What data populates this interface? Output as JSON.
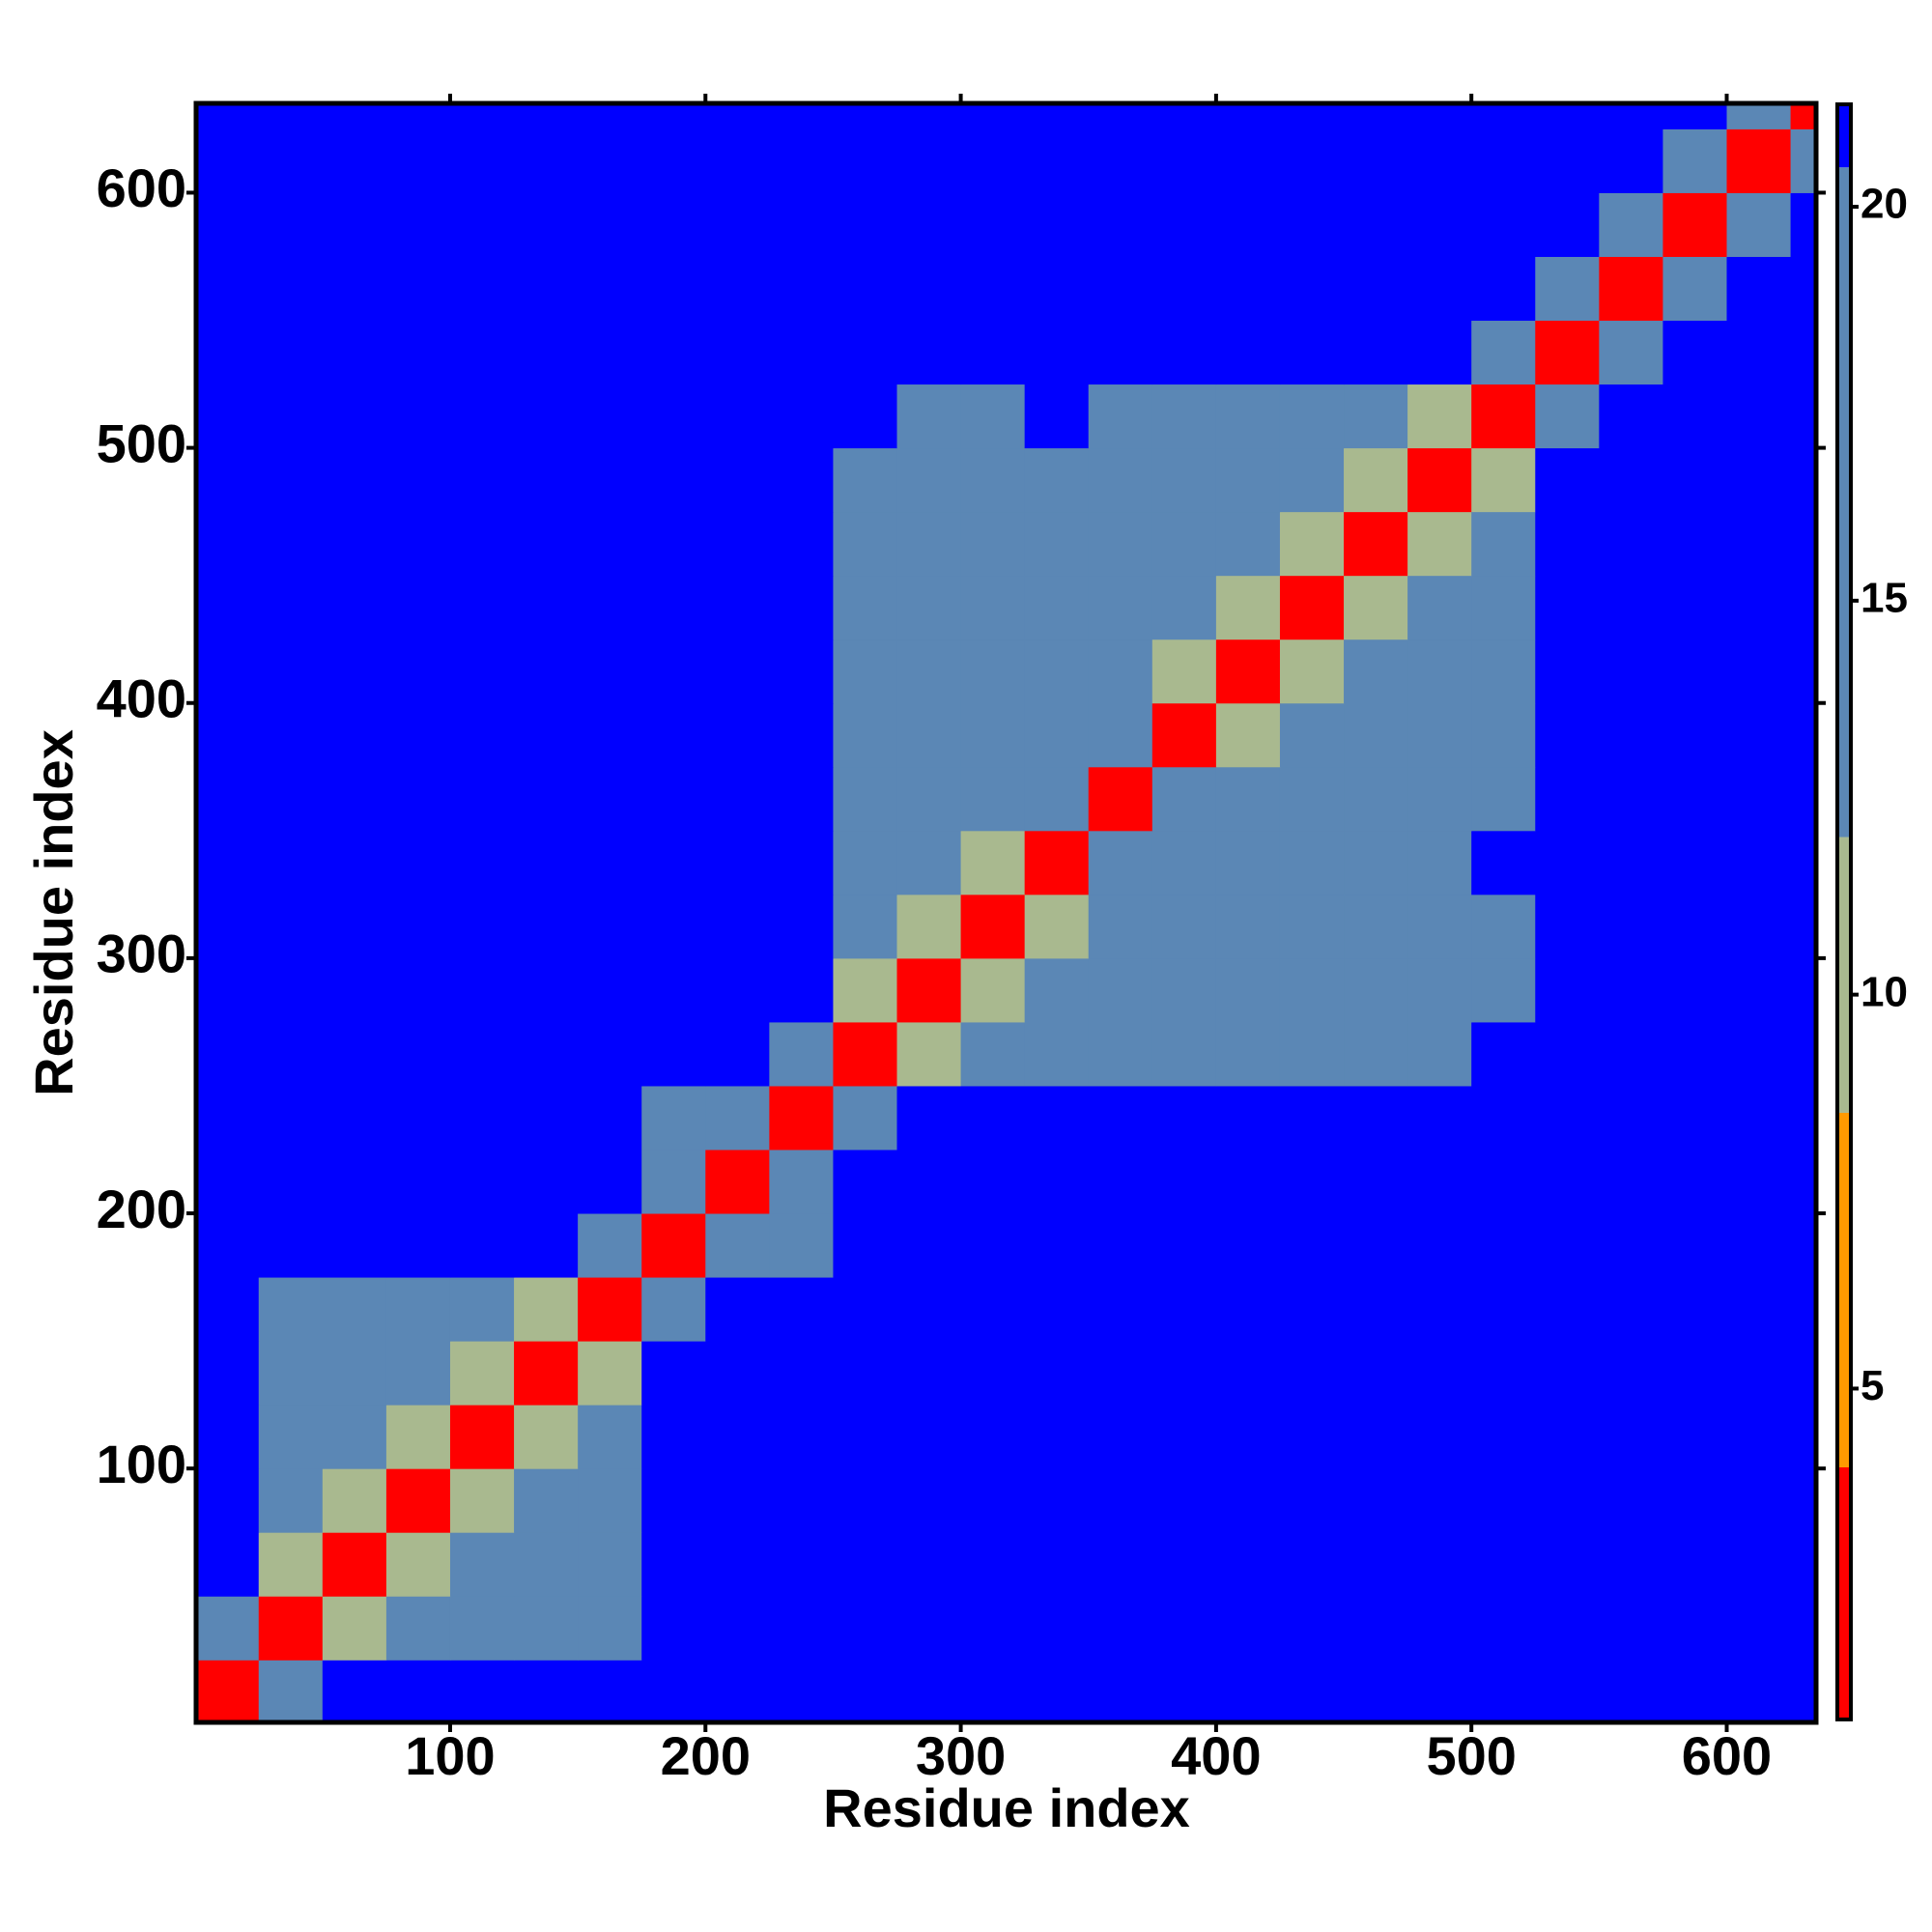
{
  "chart_data": {
    "type": "heatmap",
    "xlabel": "Residue index",
    "ylabel": "Residue index",
    "bins": [
      0,
      25,
      50,
      75,
      100,
      125,
      150,
      175,
      200,
      225,
      250,
      275,
      300,
      325,
      350,
      375,
      400,
      425,
      450,
      475,
      500,
      525,
      550,
      575,
      600,
      625,
      635
    ],
    "values": [
      [
        3,
        17,
        21,
        21,
        21,
        21,
        21,
        21,
        21,
        21,
        21,
        21,
        21,
        21,
        21,
        21,
        21,
        21,
        21,
        21,
        21,
        21,
        21,
        21,
        21,
        21
      ],
      [
        17,
        3,
        10,
        14,
        14,
        14,
        14,
        21,
        21,
        21,
        21,
        21,
        21,
        21,
        21,
        21,
        21,
        21,
        21,
        21,
        21,
        21,
        21,
        21,
        21,
        21
      ],
      [
        21,
        10,
        3,
        10,
        14,
        14,
        14,
        21,
        21,
        21,
        21,
        21,
        21,
        21,
        21,
        21,
        21,
        21,
        21,
        21,
        21,
        21,
        21,
        21,
        21,
        21
      ],
      [
        21,
        14,
        10,
        3,
        10,
        14,
        14,
        21,
        21,
        21,
        21,
        21,
        21,
        21,
        21,
        21,
        21,
        21,
        21,
        21,
        21,
        21,
        21,
        21,
        21,
        21
      ],
      [
        21,
        14,
        14,
        10,
        3,
        10,
        14,
        21,
        21,
        21,
        21,
        21,
        21,
        21,
        21,
        21,
        21,
        21,
        21,
        21,
        21,
        21,
        21,
        21,
        21,
        21
      ],
      [
        21,
        14,
        14,
        14,
        10,
        3,
        10,
        21,
        21,
        21,
        21,
        21,
        21,
        21,
        21,
        21,
        21,
        21,
        21,
        21,
        21,
        21,
        21,
        21,
        21,
        21
      ],
      [
        21,
        14,
        14,
        14,
        14,
        10,
        3,
        17,
        21,
        21,
        21,
        21,
        21,
        21,
        21,
        21,
        21,
        21,
        21,
        21,
        21,
        21,
        21,
        21,
        21,
        21
      ],
      [
        21,
        21,
        21,
        21,
        21,
        21,
        17,
        3,
        17,
        15,
        21,
        21,
        21,
        21,
        21,
        21,
        21,
        21,
        21,
        21,
        21,
        21,
        21,
        21,
        21,
        21
      ],
      [
        21,
        21,
        21,
        21,
        21,
        21,
        21,
        17,
        3,
        17,
        21,
        21,
        21,
        21,
        21,
        21,
        21,
        21,
        21,
        21,
        21,
        21,
        21,
        21,
        21,
        21
      ],
      [
        21,
        21,
        21,
        21,
        21,
        21,
        21,
        15,
        17,
        3,
        17,
        21,
        21,
        21,
        21,
        21,
        21,
        21,
        21,
        21,
        21,
        21,
        21,
        21,
        21,
        21
      ],
      [
        21,
        21,
        21,
        21,
        21,
        21,
        21,
        21,
        21,
        17,
        3,
        10,
        15,
        15,
        18,
        17,
        17,
        17,
        17,
        17,
        21,
        21,
        21,
        21,
        21,
        21
      ],
      [
        21,
        21,
        21,
        21,
        21,
        21,
        21,
        21,
        21,
        21,
        10,
        3,
        10,
        15,
        18,
        17,
        17,
        17,
        17,
        17,
        19,
        21,
        21,
        21,
        21,
        21
      ],
      [
        21,
        21,
        21,
        21,
        21,
        21,
        21,
        21,
        21,
        21,
        15,
        10,
        3,
        10,
        18,
        17,
        17,
        17,
        17,
        17,
        19,
        21,
        21,
        21,
        21,
        21
      ],
      [
        21,
        21,
        21,
        21,
        21,
        21,
        21,
        21,
        21,
        21,
        15,
        15,
        10,
        3,
        18,
        17,
        17,
        17,
        17,
        17,
        21,
        21,
        21,
        21,
        21,
        21
      ],
      [
        21,
        21,
        21,
        21,
        21,
        21,
        21,
        21,
        21,
        21,
        18,
        18,
        18,
        18,
        3,
        18,
        18,
        18,
        18,
        18,
        18,
        21,
        21,
        21,
        21,
        21
      ],
      [
        21,
        21,
        21,
        21,
        21,
        21,
        21,
        21,
        21,
        21,
        17,
        17,
        17,
        17,
        18,
        3,
        9,
        14,
        14,
        14,
        14,
        21,
        21,
        21,
        21,
        21
      ],
      [
        21,
        21,
        21,
        21,
        21,
        21,
        21,
        21,
        21,
        21,
        17,
        17,
        17,
        17,
        18,
        9,
        3,
        9,
        14,
        14,
        14,
        21,
        21,
        21,
        21,
        21
      ],
      [
        21,
        21,
        21,
        21,
        21,
        21,
        21,
        21,
        21,
        21,
        17,
        17,
        17,
        17,
        18,
        14,
        9,
        3,
        9,
        14,
        14,
        21,
        21,
        21,
        21,
        21
      ],
      [
        21,
        21,
        21,
        21,
        21,
        21,
        21,
        21,
        21,
        21,
        17,
        17,
        17,
        17,
        18,
        14,
        14,
        9,
        3,
        9,
        14,
        21,
        21,
        21,
        21,
        21
      ],
      [
        21,
        21,
        21,
        21,
        21,
        21,
        21,
        21,
        21,
        21,
        17,
        17,
        17,
        17,
        18,
        14,
        14,
        14,
        9,
        3,
        9,
        21,
        21,
        21,
        21,
        21
      ],
      [
        21,
        21,
        21,
        21,
        21,
        21,
        21,
        21,
        21,
        21,
        21,
        19,
        19,
        21,
        18,
        14,
        14,
        14,
        14,
        9,
        3,
        17,
        21,
        21,
        21,
        21
      ],
      [
        21,
        21,
        21,
        21,
        21,
        21,
        21,
        21,
        21,
        21,
        21,
        21,
        21,
        21,
        21,
        21,
        21,
        21,
        21,
        21,
        17,
        3,
        17,
        21,
        21,
        21
      ],
      [
        21,
        21,
        21,
        21,
        21,
        21,
        21,
        21,
        21,
        21,
        21,
        21,
        21,
        21,
        21,
        21,
        21,
        21,
        21,
        21,
        21,
        17,
        3,
        17,
        21,
        21
      ],
      [
        21,
        21,
        21,
        21,
        21,
        21,
        21,
        21,
        21,
        21,
        21,
        21,
        21,
        21,
        21,
        21,
        21,
        21,
        21,
        21,
        21,
        21,
        17,
        3,
        17,
        21
      ],
      [
        21,
        21,
        21,
        21,
        21,
        21,
        21,
        21,
        21,
        21,
        21,
        21,
        21,
        21,
        21,
        21,
        21,
        21,
        21,
        21,
        21,
        21,
        21,
        17,
        3,
        17
      ],
      [
        21,
        21,
        21,
        21,
        21,
        21,
        21,
        21,
        21,
        21,
        21,
        21,
        21,
        21,
        21,
        21,
        21,
        21,
        21,
        21,
        21,
        21,
        21,
        21,
        17,
        3
      ]
    ],
    "xlim": [
      0.5,
      635
    ],
    "ylim": [
      0.5,
      635
    ],
    "xticks": [
      100,
      200,
      300,
      400,
      500,
      600
    ],
    "yticks": [
      100,
      200,
      300,
      400,
      500,
      600
    ],
    "clim": [
      0.8,
      21.3
    ],
    "cticks": [
      5,
      10,
      15,
      20
    ],
    "color_levels": [
      4,
      8.5,
      12,
      20.5
    ],
    "colors": [
      "#ff0000",
      "#ff9a00",
      "#a9b98f",
      "#5b87b5",
      "#0000ff"
    ]
  }
}
